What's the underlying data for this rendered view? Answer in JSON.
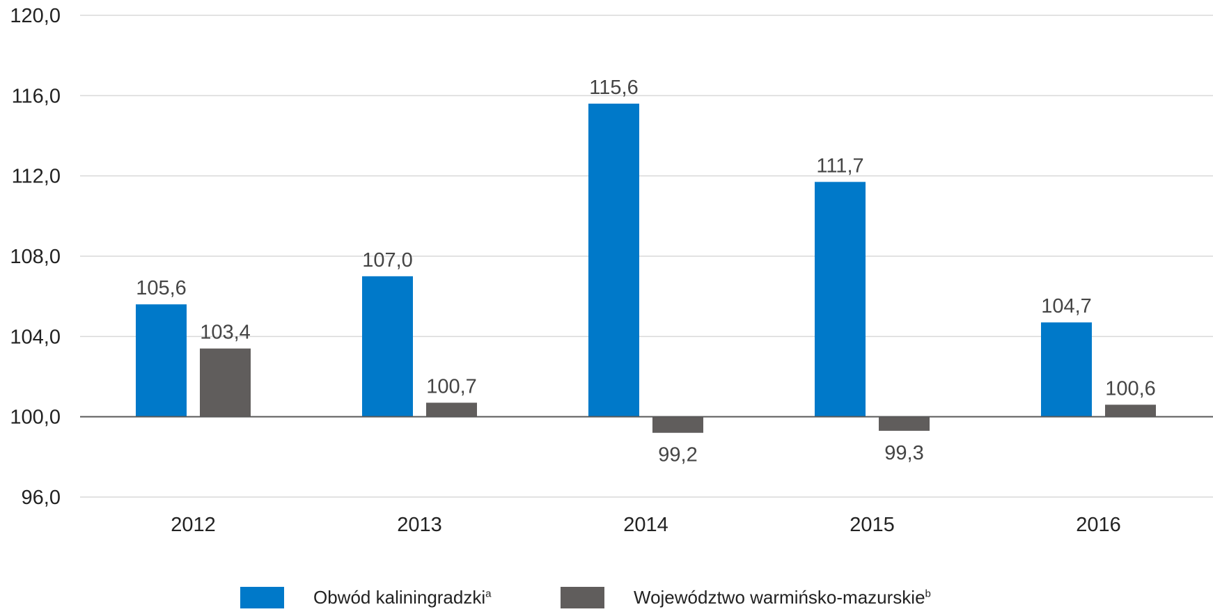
{
  "chart_data": {
    "type": "bar",
    "title": "",
    "xlabel": "",
    "ylabel": "",
    "categories": [
      "2012",
      "2013",
      "2014",
      "2015",
      "2016"
    ],
    "baseline": 100.0,
    "ylim": [
      96.0,
      120.0
    ],
    "yticks": [
      96.0,
      100.0,
      104.0,
      108.0,
      112.0,
      116.0,
      120.0
    ],
    "ytick_labels": [
      "96,0",
      "100,0",
      "104,0",
      "108,0",
      "112,0",
      "116,0",
      "120,0"
    ],
    "grid": "horizontal",
    "legend_position": "bottom",
    "series": [
      {
        "name": "Obwód kaliningradzki",
        "name_sup": "a",
        "color": "#0079C9",
        "values": [
          105.6,
          107.0,
          115.6,
          111.7,
          104.7
        ],
        "labels": [
          "105,6",
          "107,0",
          "115,6",
          "111,7",
          "104,7"
        ]
      },
      {
        "name": "Województwo warmińsko-mazurskie",
        "name_sup": "b",
        "color": "#605D5C",
        "values": [
          103.4,
          100.7,
          99.2,
          99.3,
          100.6
        ],
        "labels": [
          "103,4",
          "100,7",
          "99,2",
          "99,3",
          "100,6"
        ]
      }
    ]
  }
}
